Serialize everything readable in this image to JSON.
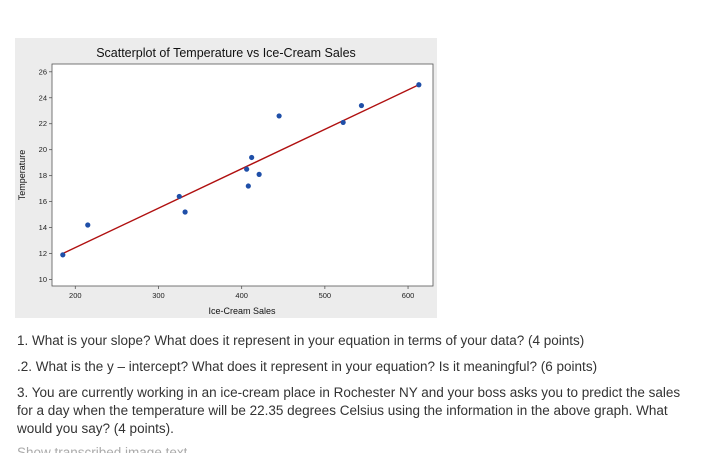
{
  "chart_data": {
    "type": "scatter",
    "title": "Scatterplot of Temperature vs Ice-Cream Sales",
    "xlabel": "Ice-Cream Sales",
    "ylabel": "Temperature",
    "xlim": [
      172,
      630
    ],
    "ylim": [
      9.5,
      26.6
    ],
    "xticks": [
      200,
      300,
      400,
      500,
      600
    ],
    "yticks": [
      10,
      12,
      14,
      16,
      18,
      20,
      22,
      24,
      26
    ],
    "grid": false,
    "point_color": "#1f4fa8",
    "line_color": "#b01010",
    "points": [
      {
        "x": 185,
        "y": 11.9
      },
      {
        "x": 215,
        "y": 14.2
      },
      {
        "x": 325,
        "y": 16.4
      },
      {
        "x": 332,
        "y": 15.2
      },
      {
        "x": 406,
        "y": 18.5
      },
      {
        "x": 408,
        "y": 17.2
      },
      {
        "x": 412,
        "y": 19.4
      },
      {
        "x": 421,
        "y": 18.1
      },
      {
        "x": 445,
        "y": 22.6
      },
      {
        "x": 522,
        "y": 22.1
      },
      {
        "x": 544,
        "y": 23.4
      },
      {
        "x": 613,
        "y": 25.0
      }
    ],
    "fit_line": {
      "x": [
        185,
        613
      ],
      "y": [
        12.0,
        25.0
      ]
    }
  },
  "questions": {
    "q1": "1. What is your slope? What does it represent in your equation in terms of your data? (4 points)",
    "q2": ".2. What is the y – intercept? What does it represent in your equation? Is it meaningful? (6 points)",
    "q3": "3. You are currently working in an ice-cream place in Rochester NY and your boss asks you to predict the sales for a day when the temperature will be 22.35 degrees Celsius using the information in the above graph. What would you say? (4 points).",
    "cutoff": "Show transcribed image text"
  }
}
